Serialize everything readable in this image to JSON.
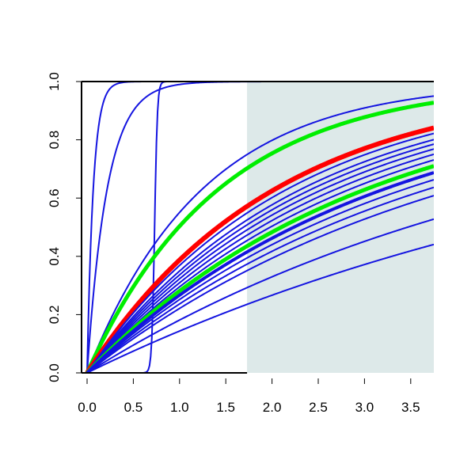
{
  "chart_data": {
    "type": "line",
    "title": "",
    "xlabel": "",
    "ylabel": "",
    "xlim": [
      -0.06,
      3.75
    ],
    "ylim": [
      0,
      1.0
    ],
    "x_ticks": [
      0.0,
      0.5,
      1.0,
      1.5,
      2.0,
      2.5,
      3.0,
      3.5
    ],
    "x_tick_labels": [
      "0.0",
      "0.5",
      "1.0",
      "1.5",
      "2.0",
      "2.5",
      "3.0",
      "3.5"
    ],
    "y_ticks": [
      0.0,
      0.2,
      0.4,
      0.6,
      0.8,
      1.0
    ],
    "y_tick_labels": [
      "0.0",
      "0.2",
      "0.4",
      "0.6",
      "0.8",
      "1.0"
    ],
    "grid": false,
    "legend": "none",
    "shaded_region": {
      "x_from": 1.73,
      "x_to": 3.75,
      "color": "#dde9e9"
    },
    "colors": {
      "blue": "#1414e0",
      "red": "#ff0000",
      "green": "#00ee00",
      "axis": "#000000"
    },
    "series": [
      {
        "kind": "exp",
        "rate": 15,
        "color": "blue",
        "width": 2
      },
      {
        "kind": "exp",
        "rate": 4.6,
        "color": "blue",
        "width": 2
      },
      {
        "kind": "step",
        "center": 0.73,
        "scale": 0.015,
        "color": "blue",
        "width": 2
      },
      {
        "kind": "exp",
        "rate": 0.8,
        "color": "blue",
        "width": 2
      },
      {
        "kind": "exp",
        "rate": 0.7,
        "color": "green",
        "width": 5
      },
      {
        "kind": "exp",
        "rate": 0.49,
        "color": "red",
        "width": 6
      },
      {
        "kind": "exp",
        "rate": 0.46,
        "color": "blue",
        "width": 2
      },
      {
        "kind": "exp",
        "rate": 0.43,
        "color": "blue",
        "width": 2
      },
      {
        "kind": "exp",
        "rate": 0.41,
        "color": "blue",
        "width": 2
      },
      {
        "kind": "exp",
        "rate": 0.39,
        "color": "blue",
        "width": 2
      },
      {
        "kind": "exp",
        "rate": 0.37,
        "color": "blue",
        "width": 2
      },
      {
        "kind": "exp",
        "rate": 0.35,
        "color": "blue",
        "width": 2
      },
      {
        "kind": "exp",
        "rate": 0.33,
        "color": "green",
        "width": 5
      },
      {
        "kind": "exp",
        "rate": 0.31,
        "color": "blue",
        "width": 4
      },
      {
        "kind": "exp",
        "rate": 0.29,
        "color": "blue",
        "width": 2
      },
      {
        "kind": "exp",
        "rate": 0.27,
        "color": "blue",
        "width": 2
      },
      {
        "kind": "exp",
        "rate": 0.25,
        "color": "blue",
        "width": 2
      },
      {
        "kind": "exp",
        "rate": 0.2,
        "color": "blue",
        "width": 2
      },
      {
        "kind": "exp",
        "rate": 0.155,
        "color": "blue",
        "width": 2
      }
    ]
  }
}
